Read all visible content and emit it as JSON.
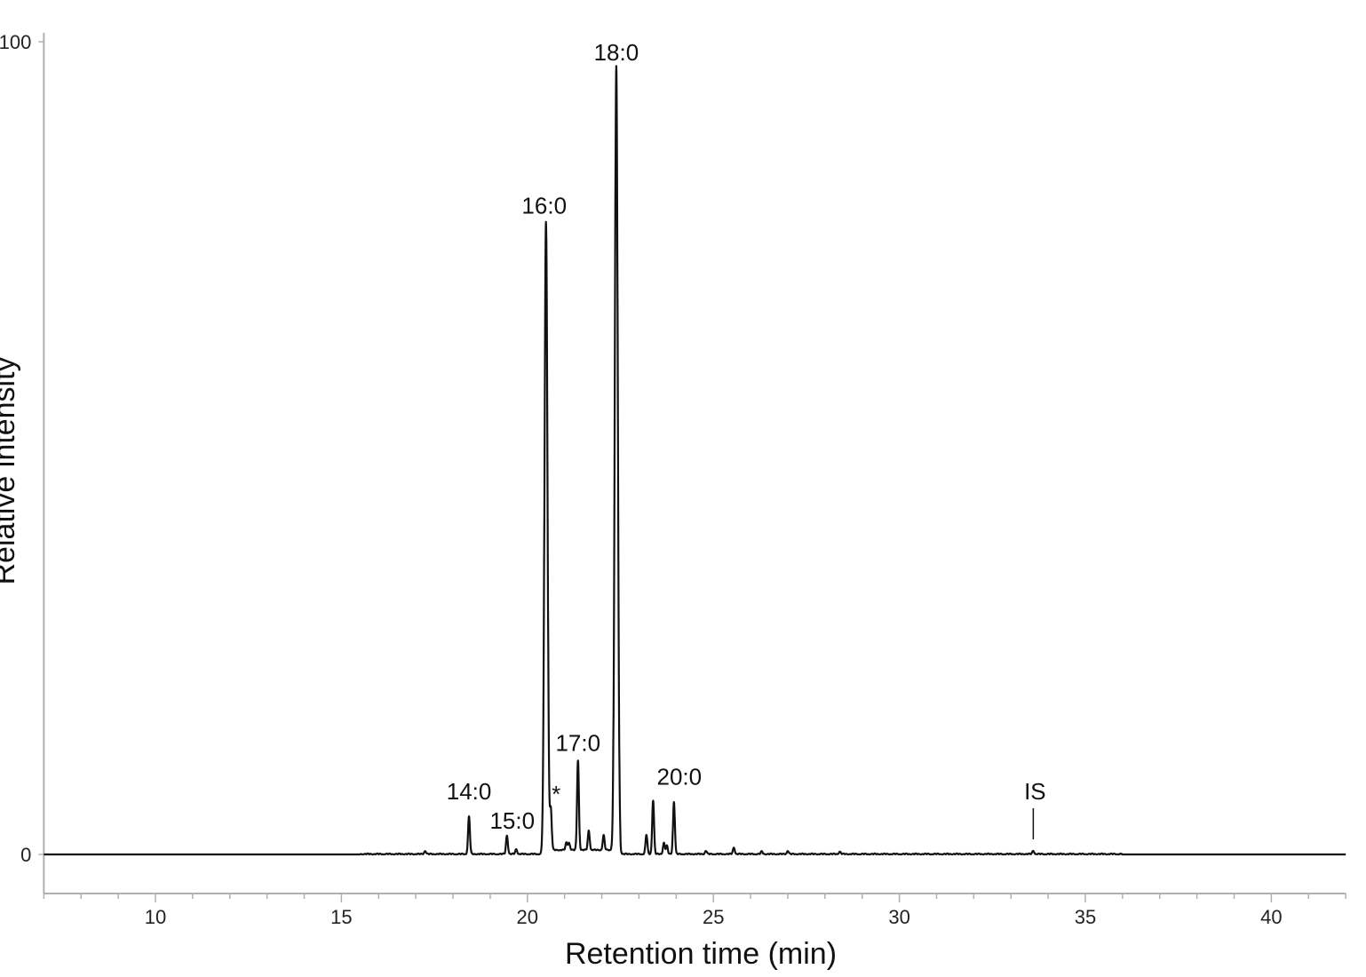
{
  "chart_data": {
    "type": "line",
    "title": "",
    "xlabel": "Retention time (min)",
    "ylabel": "Relative intensity",
    "xlim": [
      7,
      42
    ],
    "ylim": [
      0,
      100
    ],
    "x_ticks": [
      10,
      15,
      20,
      25,
      30,
      35,
      40
    ],
    "x_minor_tick_step": 1,
    "y_ticks": [
      0,
      100
    ],
    "grid": false,
    "line_color": "#111111",
    "axis_color": "#b0b0b0",
    "peaks": [
      {
        "rt": 17.25,
        "value": 0.4
      },
      {
        "rt": 18.43,
        "value": 4.6,
        "label": "14:0"
      },
      {
        "rt": 19.45,
        "value": 2.3,
        "label": "15:0"
      },
      {
        "rt": 19.7,
        "value": 0.6
      },
      {
        "rt": 20.5,
        "value": 77.3,
        "label": "16:0"
      },
      {
        "rt": 20.63,
        "value": 4.9,
        "label": "*"
      },
      {
        "rt": 21.05,
        "value": 0.9
      },
      {
        "rt": 21.12,
        "value": 0.9
      },
      {
        "rt": 21.36,
        "value": 11.0,
        "label": "17:0"
      },
      {
        "rt": 21.65,
        "value": 2.4
      },
      {
        "rt": 22.05,
        "value": 1.8
      },
      {
        "rt": 22.39,
        "value": 96.4,
        "label": "18:0"
      },
      {
        "rt": 23.2,
        "value": 2.4
      },
      {
        "rt": 23.38,
        "value": 6.6
      },
      {
        "rt": 23.67,
        "value": 1.4
      },
      {
        "rt": 23.75,
        "value": 1.0
      },
      {
        "rt": 23.94,
        "value": 6.4,
        "label": "20:0"
      },
      {
        "rt": 24.8,
        "value": 0.4
      },
      {
        "rt": 25.55,
        "value": 0.8
      },
      {
        "rt": 26.3,
        "value": 0.3
      },
      {
        "rt": 27.0,
        "value": 0.4
      },
      {
        "rt": 28.4,
        "value": 0.3
      },
      {
        "rt": 33.6,
        "value": 0.4,
        "label": "IS"
      }
    ]
  }
}
